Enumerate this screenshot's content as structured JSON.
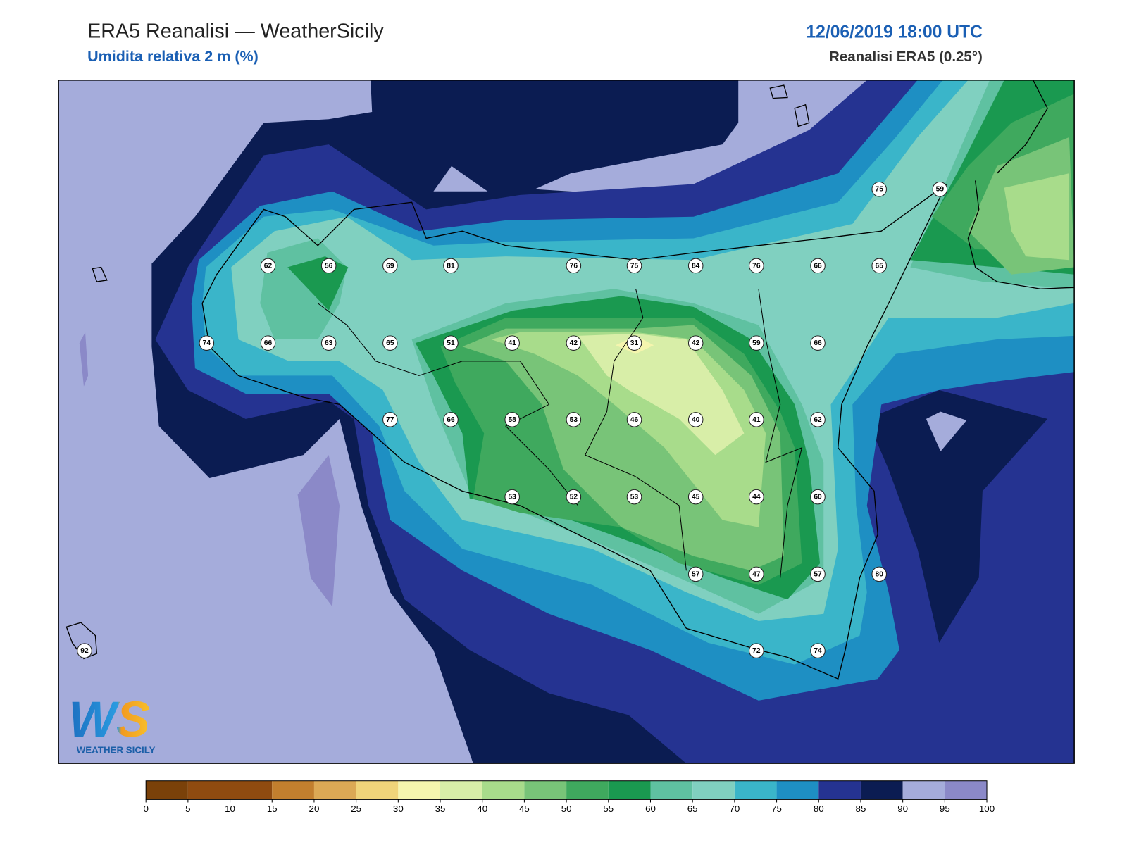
{
  "header": {
    "title": "ERA5 Reanalisi — WeatherSicily",
    "subtitle": "Umidita relativa 2 m (%)",
    "datetime": "12/06/2019 18:00 UTC",
    "source": "Reanalisi ERA5 (0.25°)"
  },
  "stations": [
    75,
    59,
    62,
    56,
    69,
    81,
    76,
    75,
    84,
    76,
    66,
    65,
    74,
    66,
    63,
    65,
    51,
    41,
    42,
    31,
    42,
    59,
    66,
    77,
    66,
    58,
    53,
    46,
    40,
    41,
    62,
    53,
    52,
    53,
    45,
    44,
    60,
    57,
    47,
    57,
    80,
    92,
    72,
    74
  ],
  "colorbar": {
    "ticks": [
      0,
      5,
      10,
      15,
      20,
      25,
      30,
      35,
      40,
      45,
      50,
      55,
      60,
      65,
      70,
      75,
      80,
      85,
      90,
      95,
      100
    ],
    "colors": [
      "#7a4109",
      "#8f4b10",
      "#8f4b10",
      "#c27f2e",
      "#dca955",
      "#f0d47a",
      "#f5f5ae",
      "#d8eea8",
      "#a8dc8b",
      "#78c478",
      "#3fa95e",
      "#1a9950",
      "#5fc1a1",
      "#80d0c0",
      "#3ab5c9",
      "#1e8fc3",
      "#253391",
      "#0b1c52",
      "#a5acdb",
      "#8b89c8"
    ]
  },
  "logo": {
    "initials": "WS",
    "name": "WEATHER SICILY"
  }
}
